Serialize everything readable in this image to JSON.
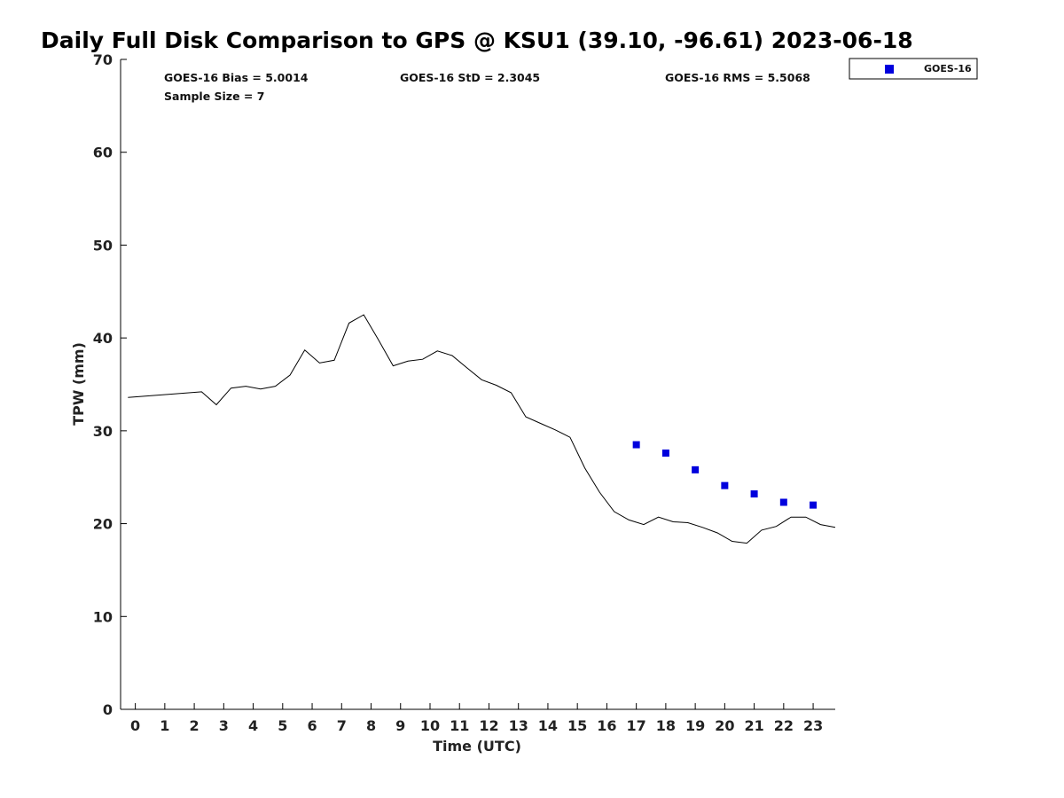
{
  "chart_data": {
    "type": "line",
    "title": "Daily Full Disk Comparison to GPS @ KSU1 (39.10, -96.61) 2023-06-18",
    "xlabel": "Time (UTC)",
    "ylabel": "TPW (mm)",
    "xlim": [
      -0.5,
      23.75
    ],
    "ylim": [
      0,
      70
    ],
    "xticks": [
      0,
      1,
      2,
      3,
      4,
      5,
      6,
      7,
      8,
      9,
      10,
      11,
      12,
      13,
      14,
      15,
      16,
      17,
      18,
      19,
      20,
      21,
      22,
      23
    ],
    "yticks": [
      0,
      10,
      20,
      30,
      40,
      50,
      60,
      70
    ],
    "grid": false,
    "legend": {
      "position": "top-right",
      "entries": [
        "GOES-16"
      ]
    },
    "stats": {
      "bias": "GOES-16 Bias = 5.0014",
      "std": "GOES-16 StD = 2.3045",
      "rms": "GOES-16 RMS = 5.5068",
      "sample": "Sample Size = 7"
    },
    "series": [
      {
        "kind": "line",
        "color": "#000000",
        "x": [
          -0.25,
          2.25,
          2.75,
          3.25,
          3.75,
          4.25,
          4.75,
          5.25,
          5.75,
          6.25,
          6.75,
          7.25,
          7.75,
          8.25,
          8.75,
          9.25,
          9.75,
          10.25,
          10.75,
          11.25,
          11.75,
          12.25,
          12.75,
          13.25,
          13.75,
          14.25,
          14.75,
          15.25,
          15.75,
          16.25,
          16.75,
          17.25,
          17.75,
          18.25,
          18.75,
          19.25,
          19.75,
          20.25,
          20.75,
          21.25,
          21.75,
          22.25,
          22.75,
          23.25,
          23.75
        ],
        "values": [
          33.6,
          34.2,
          32.8,
          34.6,
          34.8,
          34.5,
          34.8,
          36.0,
          38.7,
          37.3,
          37.6,
          41.6,
          42.5,
          39.8,
          37.0,
          37.5,
          37.7,
          38.6,
          38.1,
          36.8,
          35.5,
          34.9,
          34.1,
          31.5,
          30.8,
          30.1,
          29.3,
          26.0,
          23.4,
          21.3,
          20.4,
          19.9,
          20.7,
          20.2,
          20.1,
          19.6,
          19.0,
          18.1,
          17.9,
          19.3,
          19.7,
          20.7,
          20.7,
          19.9,
          19.6
        ]
      },
      {
        "name": "GOES-16",
        "kind": "scatter",
        "color": "#0000dd",
        "x": [
          17,
          18,
          19,
          20,
          21,
          22,
          23
        ],
        "values": [
          28.5,
          27.6,
          25.8,
          24.1,
          23.2,
          22.3,
          22.0
        ]
      }
    ]
  }
}
